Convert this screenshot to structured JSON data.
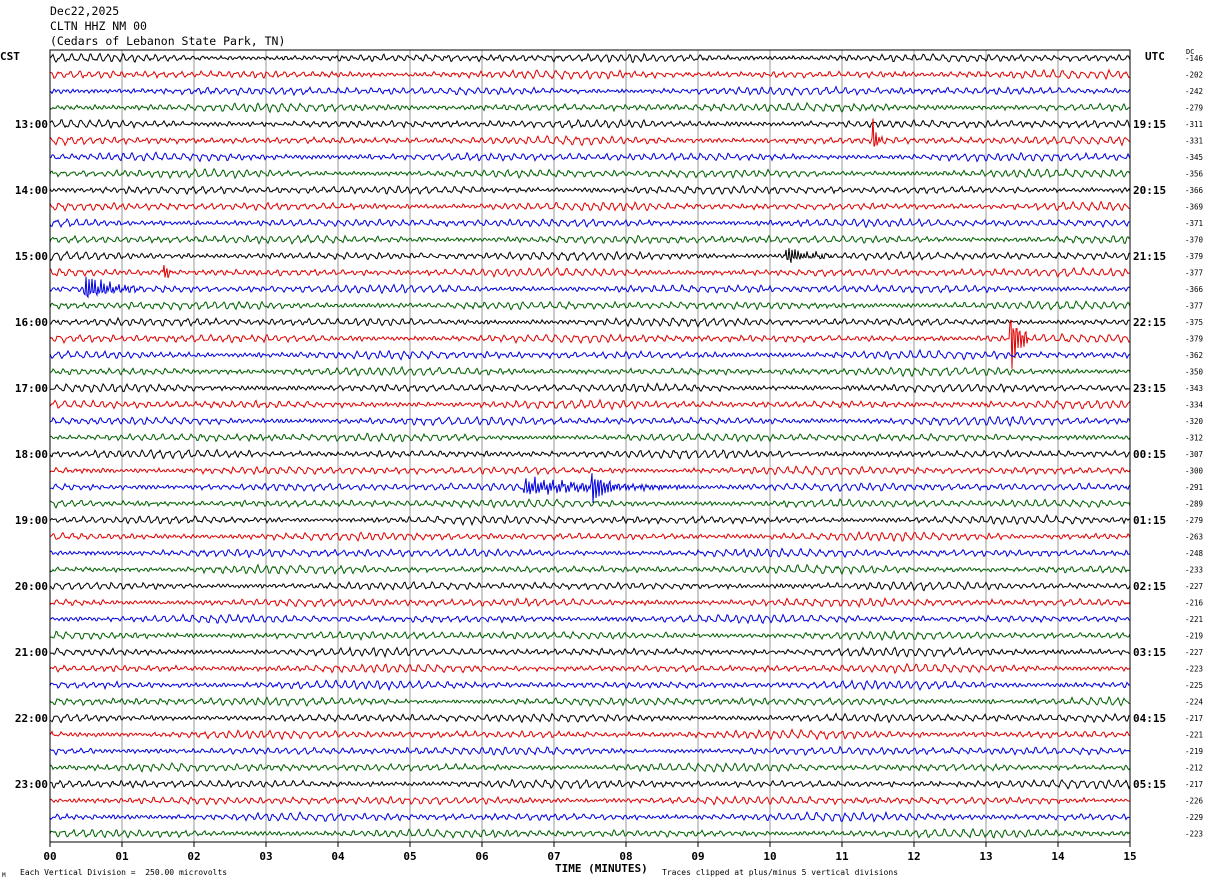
{
  "header": {
    "date": "Dec22,2025",
    "station": "CLTN HHZ NM 00",
    "location": "(Cedars of Lebanon State Park, TN)"
  },
  "left_axis_label": "CST",
  "right_axis_label": "UTC",
  "dc_label": "DC",
  "x_axis_title": "TIME (MINUTES)",
  "footer": {
    "scale_note": "Each Vertical Division =  250.00 microvolts",
    "clip_note": "Traces clipped at plus/minus 5 vertical divisions",
    "corner_mark": "M"
  },
  "colors": {
    "cycle": [
      "#000000",
      "#e00000",
      "#0000e0",
      "#006000"
    ],
    "grid": "#808080"
  },
  "chart_data": {
    "type": "line",
    "title": "CLTN HHZ NM 00",
    "xlabel": "TIME (MINUTES)",
    "xlim": [
      0,
      15
    ],
    "x_ticks": [
      "00",
      "01",
      "02",
      "03",
      "04",
      "05",
      "06",
      "07",
      "08",
      "09",
      "10",
      "11",
      "12",
      "13",
      "14",
      "15"
    ],
    "trace_count": 48,
    "traces_per_hour": 4,
    "left_hour_labels": [
      "13:00",
      "14:00",
      "15:00",
      "16:00",
      "17:00",
      "18:00",
      "19:00",
      "20:00",
      "21:00",
      "22:00",
      "23:00"
    ],
    "right_hour_labels": [
      "19:15",
      "20:15",
      "21:15",
      "22:15",
      "23:15",
      "00:15",
      "01:15",
      "02:15",
      "03:15",
      "04:15",
      "05:15"
    ],
    "hour_label_first_trace": 4,
    "dc_offsets": [
      "-146",
      "-202",
      "-242",
      "-279",
      "-311",
      "-331",
      "-345",
      "-356",
      "-366",
      "-369",
      "-371",
      "-370",
      "-379",
      "-377",
      "-366",
      "-377",
      "-375",
      "-379",
      "-362",
      "-350",
      "-343",
      "-334",
      "-320",
      "-312",
      "-307",
      "-300",
      "-291",
      "-289",
      "-279",
      "-263",
      "-248",
      "-233",
      "-227",
      "-216",
      "-221",
      "-219",
      "-227",
      "-223",
      "-225",
      "-224",
      "-217",
      "-221",
      "-219",
      "-212",
      "-217",
      "-226",
      "-229",
      "-223"
    ],
    "events": [
      {
        "trace": 5,
        "minute": 11.45,
        "amplitude": 1.4,
        "duration": 0.12
      },
      {
        "trace": 12,
        "minute": 10.25,
        "amplitude": 1.0,
        "duration": 0.6
      },
      {
        "trace": 14,
        "minute": 0.5,
        "amplitude": 1.3,
        "duration": 0.8
      },
      {
        "trace": 17,
        "minute": 13.35,
        "amplitude": 3.6,
        "duration": 0.25
      },
      {
        "trace": 26,
        "minute": 6.6,
        "amplitude": 0.9,
        "duration": 2.2
      },
      {
        "trace": 26,
        "minute": 7.55,
        "amplitude": 1.3,
        "duration": 0.3
      },
      {
        "trace": 13,
        "minute": 1.6,
        "amplitude": 0.9,
        "duration": 0.1
      }
    ]
  }
}
